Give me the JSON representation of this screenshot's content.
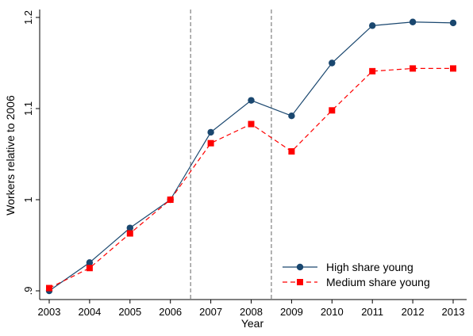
{
  "chart_data": {
    "type": "line",
    "x": [
      2003,
      2004,
      2005,
      2006,
      2007,
      2008,
      2009,
      2010,
      2011,
      2012,
      2013
    ],
    "xlabel": "Year",
    "ylabel": "Workers relative to 2006",
    "xlim": [
      2003,
      2013
    ],
    "ylim": [
      0.9,
      1.2
    ],
    "y_ticks": [
      0.9,
      1.0,
      1.1,
      1.2
    ],
    "y_tick_labels": [
      ".9",
      "1",
      "1.1",
      "1.2"
    ],
    "x_tick_labels": [
      "2003",
      "2004",
      "2005",
      "2006",
      "2007",
      "2008",
      "2009",
      "2010",
      "2011",
      "2012",
      "2013"
    ],
    "vertical_reference_lines": [
      2006.5,
      2008.5
    ],
    "grid": false,
    "legend_position": "bottom-right",
    "series": [
      {
        "name": "High share young",
        "values": [
          0.9,
          0.931,
          0.969,
          1.0,
          1.074,
          1.109,
          1.092,
          1.15,
          1.191,
          1.195,
          1.194
        ],
        "color": "#1a476f",
        "marker": "circle",
        "line_style": "solid"
      },
      {
        "name": "Medium share young",
        "values": [
          0.903,
          0.925,
          0.963,
          1.0,
          1.062,
          1.083,
          1.053,
          1.098,
          1.141,
          1.144,
          1.144
        ],
        "color": "#ff0000",
        "marker": "square",
        "line_style": "dashed"
      }
    ]
  }
}
